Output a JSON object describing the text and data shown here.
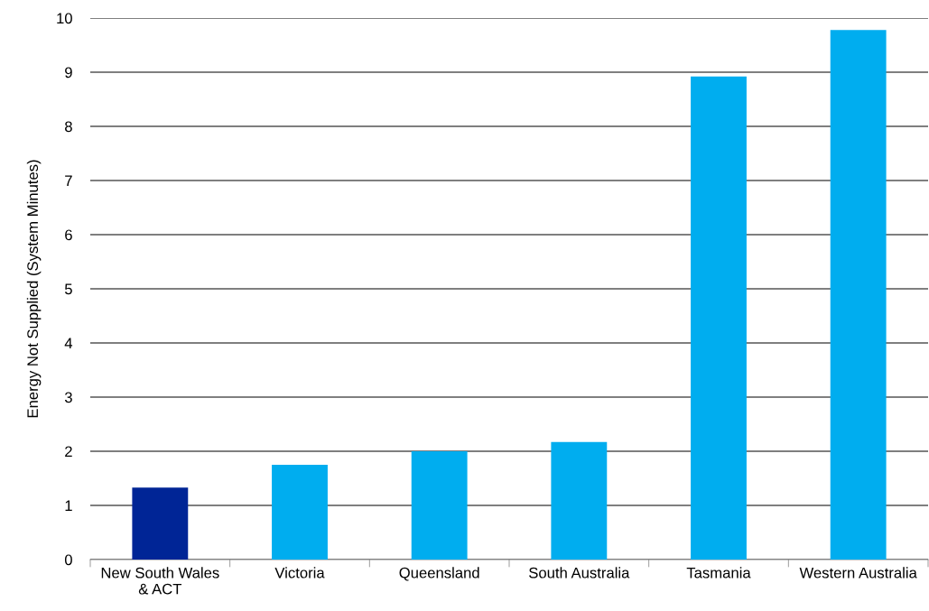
{
  "chart_data": {
    "type": "bar",
    "ylabel": "Energy Not Supplied (System Minutes)",
    "categories": [
      "New South Wales\n& ACT",
      "Victoria",
      "Queensland",
      "South Australia",
      "Tasmania",
      "Western Australia"
    ],
    "values": [
      1.33,
      1.75,
      2.0,
      2.17,
      8.92,
      9.78
    ],
    "colors": [
      "#002596",
      "#00adef",
      "#00adef",
      "#00adef",
      "#00adef",
      "#00adef"
    ],
    "ylim": [
      0,
      10
    ],
    "yticks": [
      0,
      1,
      2,
      3,
      4,
      5,
      6,
      7,
      8,
      9,
      10
    ],
    "grid": "y"
  }
}
